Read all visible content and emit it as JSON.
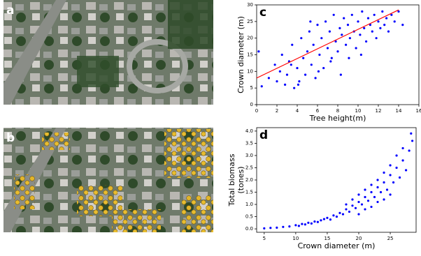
{
  "panels": [
    {
      "label": "a"
    },
    {
      "label": "b"
    }
  ],
  "chart_data": [
    {
      "type": "scatter",
      "panel_label": "c",
      "xlabel": "Tree height(m)",
      "ylabel": [
        "Crown diameter (m)"
      ],
      "xlim": [
        0,
        16
      ],
      "xticks": [
        0,
        2,
        4,
        6,
        8,
        10,
        12,
        14,
        16
      ],
      "ylim": [
        0,
        30
      ],
      "yticks": [
        0,
        5,
        10,
        15,
        20,
        25,
        30
      ],
      "series": [
        {
          "color": "blue",
          "x": [
            0.2,
            0.5,
            1.2,
            1.8,
            2.0,
            2.3,
            2.5,
            2.8,
            3.0,
            3.2,
            3.5,
            3.7,
            4.0,
            4.2,
            4.4,
            4.6,
            4.8,
            5.0,
            5.2,
            5.4,
            5.6,
            5.8,
            6.0,
            6.2,
            6.4,
            6.6,
            6.8,
            7.0,
            7.2,
            7.4,
            7.6,
            7.8,
            8.0,
            8.2,
            8.4,
            8.6,
            8.8,
            9.0,
            9.2,
            9.4,
            9.6,
            9.8,
            10.0,
            10.2,
            10.4,
            10.6,
            10.8,
            11.0,
            11.2,
            11.4,
            11.6,
            11.8,
            12.0,
            12.2,
            12.4,
            12.6,
            12.8,
            13.0,
            13.3,
            13.6,
            14.0,
            14.4,
            3.4,
            4.1,
            5.3,
            6.1,
            7.3,
            8.3,
            9.1,
            10.3
          ],
          "values": [
            16,
            5.5,
            8,
            12,
            7,
            10,
            15,
            6,
            9,
            13,
            18,
            5,
            11,
            7,
            20,
            14,
            9,
            16,
            22,
            12,
            18,
            8,
            24,
            15,
            20,
            11,
            25,
            17,
            22,
            14,
            27,
            19,
            16,
            23,
            21,
            26,
            18,
            24,
            20,
            27,
            22,
            17,
            25,
            21,
            28,
            23,
            19,
            26,
            24,
            22,
            27,
            20,
            25,
            23,
            28,
            24,
            26,
            22,
            27,
            25,
            28,
            24,
            12,
            6,
            25,
            10,
            13,
            9,
            14,
            15
          ]
        }
      ],
      "trend_line": {
        "color": "red",
        "x": [
          0,
          14
        ],
        "values": [
          8,
          28.5
        ]
      }
    },
    {
      "type": "scatter",
      "panel_label": "d",
      "xlabel": "Crown diameter (m)",
      "ylabel": [
        "Total biomass",
        "(tones)"
      ],
      "xlim": [
        3.8,
        29.1
      ],
      "xticks": [
        5,
        10,
        15,
        20,
        25
      ],
      "ylim": [
        -0.14,
        4.14
      ],
      "yticks": [
        {
          "value": 0,
          "label": "0.0"
        },
        0.5,
        {
          "value": 1,
          "label": "1.0"
        },
        1.5,
        {
          "value": 2,
          "label": "2.0"
        },
        2.5,
        {
          "value": 3,
          "label": "3.0"
        },
        3.5,
        {
          "value": 4,
          "label": "4.0"
        }
      ],
      "series": [
        {
          "color": "blue",
          "x": [
            5,
            6,
            7,
            8,
            9,
            10,
            10.5,
            11,
            11.5,
            12,
            12.5,
            13,
            13.5,
            14,
            14.5,
            15,
            15.5,
            16,
            16.5,
            17,
            17.5,
            18,
            18.5,
            19,
            19.5,
            20,
            20.5,
            21,
            21.5,
            22,
            22.5,
            23,
            23.5,
            24,
            24.5,
            25,
            25.5,
            26,
            26.5,
            27,
            27.5,
            28,
            28.3,
            28.5,
            20,
            21,
            22,
            23,
            24,
            25,
            18,
            19,
            20,
            21,
            22,
            23,
            24,
            25,
            26,
            27
          ],
          "values": [
            0.02,
            0.04,
            0.05,
            0.08,
            0.1,
            0.15,
            0.12,
            0.2,
            0.18,
            0.25,
            0.22,
            0.3,
            0.28,
            0.35,
            0.4,
            0.45,
            0.38,
            0.55,
            0.5,
            0.65,
            0.6,
            0.8,
            0.7,
            0.95,
            0.85,
            1.1,
            1.0,
            1.3,
            1.15,
            1.5,
            1.3,
            1.7,
            1.5,
            1.9,
            1.6,
            2.2,
            1.9,
            2.5,
            2.1,
            2.8,
            2.4,
            3.2,
            3.9,
            3.6,
            0.6,
            0.8,
            0.9,
            1.1,
            1.2,
            1.4,
            1.0,
            1.2,
            1.4,
            1.6,
            1.8,
            2.0,
            2.3,
            2.6,
            3.0,
            3.3
          ]
        }
      ]
    }
  ]
}
